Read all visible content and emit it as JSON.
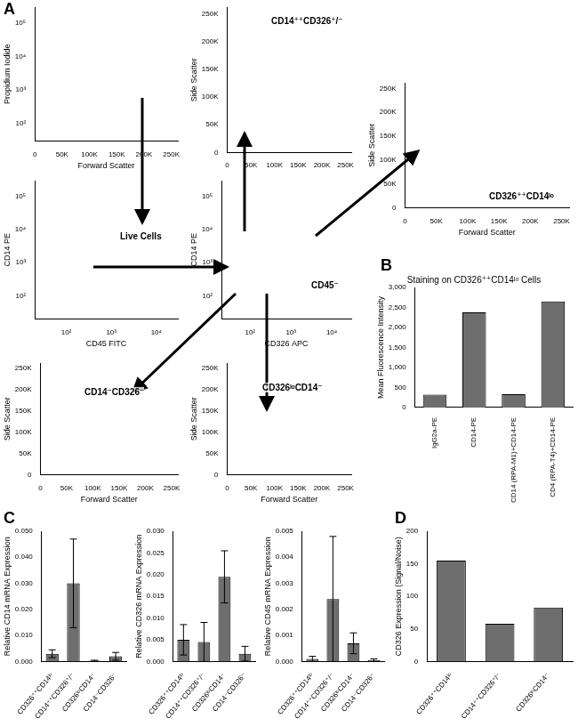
{
  "panel_labels": [
    "A",
    "B",
    "C",
    "D"
  ],
  "chart_data": [
    {
      "type": "scatter",
      "x_label": "Forward Scatter",
      "y_label": "Propidium Iodide",
      "log": "y",
      "xlim": [
        0,
        262000
      ],
      "xticks": [
        0,
        {
          "value": 50000,
          "label": "50K"
        },
        {
          "value": 100000,
          "label": "100K"
        },
        {
          "value": 150000,
          "label": "150K"
        },
        {
          "value": 200000,
          "label": "200K"
        },
        {
          "value": 250000,
          "label": "250K"
        }
      ],
      "ylim": [
        30,
        300000
      ],
      "yticks": [
        {
          "value": 100,
          "label": "10²"
        },
        {
          "value": 1000,
          "label": "10³"
        },
        {
          "value": 10000,
          "label": "10⁴"
        },
        {
          "value": 100000,
          "label": "10⁵"
        }
      ],
      "grid": false
    },
    {
      "type": "scatter",
      "y_label": "Side Scatter",
      "annotations": [
        "CD14⁺⁺CD326⁺/⁻"
      ],
      "xlim": [
        0,
        262000
      ],
      "xticks": [
        0,
        {
          "value": 50000,
          "label": "50K"
        },
        {
          "value": 100000,
          "label": "100K"
        },
        {
          "value": 150000,
          "label": "150K"
        },
        {
          "value": 200000,
          "label": "200K"
        },
        {
          "value": 250000,
          "label": "250K"
        }
      ],
      "ylim": [
        0,
        262000
      ],
      "yticks": [
        0,
        {
          "value": 50000,
          "label": "50K"
        },
        {
          "value": 100000,
          "label": "100K"
        },
        {
          "value": 150000,
          "label": "150K"
        },
        {
          "value": 200000,
          "label": "200K"
        },
        {
          "value": 250000,
          "label": "250K"
        }
      ],
      "grid": false
    },
    {
      "type": "scatter",
      "x_label": "Forward Scatter",
      "y_label": "Side Scatter",
      "annotations": [
        "CD326⁺⁺CD14ˡᵒ"
      ],
      "xlim": [
        0,
        262000
      ],
      "xticks": [
        0,
        {
          "value": 50000,
          "label": "50K"
        },
        {
          "value": 100000,
          "label": "100K"
        },
        {
          "value": 150000,
          "label": "150K"
        },
        {
          "value": 200000,
          "label": "200K"
        },
        {
          "value": 250000,
          "label": "250K"
        }
      ],
      "ylim": [
        0,
        262000
      ],
      "yticks": [
        0,
        {
          "value": 50000,
          "label": "50K"
        },
        {
          "value": 100000,
          "label": "100K"
        },
        {
          "value": 150000,
          "label": "150K"
        },
        {
          "value": 200000,
          "label": "200K"
        },
        {
          "value": 250000,
          "label": "250K"
        }
      ],
      "grid": false
    },
    {
      "type": "scatter",
      "x_label": "CD45 FITC",
      "y_label": "CD14 PE",
      "log": true,
      "annotations": [
        "Live Cells"
      ],
      "xlim": [
        20,
        30000
      ],
      "xticks": [
        {
          "value": 100,
          "label": "10²"
        },
        {
          "value": 1000,
          "label": "10³"
        },
        {
          "value": 10000,
          "label": "10⁴"
        }
      ],
      "ylim": [
        20,
        300000
      ],
      "yticks": [
        {
          "value": 100,
          "label": "10²"
        },
        {
          "value": 1000,
          "label": "10³"
        },
        {
          "value": 10000,
          "label": "10⁴"
        },
        {
          "value": 100000,
          "label": "10⁵"
        }
      ],
      "grid": false
    },
    {
      "type": "scatter",
      "x_label": "CD326 APC",
      "y_label": "CD14 PE",
      "log": true,
      "annotations": [
        "CD45⁻"
      ],
      "xlim": [
        20,
        30000
      ],
      "xticks": [
        {
          "value": 100,
          "label": "10²"
        },
        {
          "value": 1000,
          "label": "10³"
        },
        {
          "value": 10000,
          "label": "10⁴"
        }
      ],
      "ylim": [
        20,
        300000
      ],
      "yticks": [
        {
          "value": 100,
          "label": "10²"
        },
        {
          "value": 1000,
          "label": "10³"
        },
        {
          "value": 10000,
          "label": "10⁴"
        },
        {
          "value": 100000,
          "label": "10⁵"
        }
      ],
      "grid": false
    },
    {
      "type": "scatter",
      "x_label": "Forward Scatter",
      "y_label": "Side Scatter",
      "annotations": [
        "CD14⁻CD326⁻"
      ],
      "xlim": [
        0,
        262000
      ],
      "xticks": [
        0,
        {
          "value": 50000,
          "label": "50K"
        },
        {
          "value": 100000,
          "label": "100K"
        },
        {
          "value": 150000,
          "label": "150K"
        },
        {
          "value": 200000,
          "label": "200K"
        },
        {
          "value": 250000,
          "label": "250K"
        }
      ],
      "ylim": [
        0,
        262000
      ],
      "yticks": [
        0,
        {
          "value": 50000,
          "label": "50K"
        },
        {
          "value": 100000,
          "label": "100K"
        },
        {
          "value": 150000,
          "label": "150K"
        },
        {
          "value": 200000,
          "label": "200K"
        },
        {
          "value": 250000,
          "label": "250K"
        }
      ],
      "grid": false
    },
    {
      "type": "scatter",
      "x_label": "Forward Scatter",
      "y_label": "Side Scatter",
      "annotations": [
        "CD326ˡᵒCD14⁻"
      ],
      "xlim": [
        0,
        262000
      ],
      "xticks": [
        0,
        {
          "value": 50000,
          "label": "50K"
        },
        {
          "value": 100000,
          "label": "100K"
        },
        {
          "value": 150000,
          "label": "150K"
        },
        {
          "value": 200000,
          "label": "200K"
        },
        {
          "value": 250000,
          "label": "250K"
        }
      ],
      "ylim": [
        0,
        262000
      ],
      "yticks": [
        0,
        {
          "value": 50000,
          "label": "50K"
        },
        {
          "value": 100000,
          "label": "100K"
        },
        {
          "value": 150000,
          "label": "150K"
        },
        {
          "value": 200000,
          "label": "200K"
        },
        {
          "value": 250000,
          "label": "250K"
        }
      ],
      "grid": false
    },
    {
      "type": "bar",
      "title": "Staining on CD326⁺⁺CD14ˡᵒ Cells",
      "y_label": "Mean Fluorescence Intensity",
      "categories": [
        "IgG2a-PE",
        "CD14-PE",
        "CD14 (RPA-M1)+CD14-PE",
        "CD4 (RPA-T4)+CD14-PE"
      ],
      "values": [
        320,
        2380,
        330,
        2650
      ],
      "color": "#6e6e6e",
      "ylim": [
        0,
        3000
      ],
      "yticks": [
        0,
        500,
        {
          "value": 1000,
          "label": "1,000"
        },
        {
          "value": 1500,
          "label": "1,500"
        },
        {
          "value": 2000,
          "label": "2,000"
        },
        {
          "value": 2500,
          "label": "2,500"
        },
        {
          "value": 3000,
          "label": "3,000"
        }
      ],
      "grid": false
    },
    {
      "type": "bar",
      "y_label": "Relative CD14 mRNA Expression",
      "categories": [
        "CD326⁺⁺CD14ˡᵒ",
        "CD14⁺⁺CD326⁺/⁻",
        "CD326ˡᵒCD14⁻",
        "CD14⁻CD326⁻"
      ],
      "values": [
        0.003,
        0.03,
        0.0003,
        0.002
      ],
      "errors": [
        0.0015,
        0.017,
        0.0002,
        0.0015
      ],
      "color": "#6e6e6e",
      "ylim": [
        0,
        0.05
      ],
      "yticks": [
        {
          "value": 0,
          "label": "0.000"
        },
        {
          "value": 0.01,
          "label": "0.010"
        },
        {
          "value": 0.02,
          "label": "0.020"
        },
        {
          "value": 0.03,
          "label": "0.030"
        },
        {
          "value": 0.04,
          "label": "0.040"
        },
        {
          "value": 0.05,
          "label": "0.050"
        }
      ],
      "grid": false
    },
    {
      "type": "bar",
      "y_label": "Relative CD326 mRNA Expression",
      "categories": [
        "CD326⁺⁺CD14ˡᵒ",
        "CD14⁺⁺CD326⁺/⁻",
        "CD326ˡᵒCD14⁻",
        "CD14⁻CD326⁻"
      ],
      "values": [
        0.005,
        0.0045,
        0.0195,
        0.0018
      ],
      "errors": [
        0.0035,
        0.0045,
        0.006,
        0.0017
      ],
      "color": "#6e6e6e",
      "ylim": [
        0,
        0.03
      ],
      "yticks": [
        {
          "value": 0,
          "label": "0.000"
        },
        {
          "value": 0.005,
          "label": "0.005"
        },
        {
          "value": 0.01,
          "label": "0.010"
        },
        {
          "value": 0.015,
          "label": "0.015"
        },
        {
          "value": 0.02,
          "label": "0.020"
        },
        {
          "value": 0.025,
          "label": "0.025"
        },
        {
          "value": 0.03,
          "label": "0.030"
        }
      ],
      "grid": false
    },
    {
      "type": "bar",
      "y_label": "Relative CD45 mRNA Expression",
      "categories": [
        "CD326⁺⁺CD14ˡᵒ",
        "CD14⁺⁺CD326⁺/⁻",
        "CD326ˡᵒCD14⁻",
        "CD14⁻CD326⁻"
      ],
      "values": [
        0.0001,
        0.0024,
        0.0007,
        5e-05
      ],
      "errors": [
        0.0001,
        0.0024,
        0.0004,
        5e-05
      ],
      "color": "#6e6e6e",
      "ylim": [
        0,
        0.005
      ],
      "yticks": [
        {
          "value": 0,
          "label": "0.000"
        },
        {
          "value": 0.001,
          "label": "0.001"
        },
        {
          "value": 0.002,
          "label": "0.002"
        },
        {
          "value": 0.003,
          "label": "0.003"
        },
        {
          "value": 0.004,
          "label": "0.004"
        },
        {
          "value": 0.005,
          "label": "0.005"
        }
      ],
      "grid": false
    },
    {
      "type": "bar",
      "y_label": "CD326 Expression (Signal/Noise)",
      "categories": [
        "CD326⁺⁺CD14ˡᵒ",
        "CD14⁺⁺CD326⁺/⁻",
        "CD326ˡᵒCD14⁻"
      ],
      "values": [
        155,
        58,
        83
      ],
      "color": "#6e6e6e",
      "ylim": [
        0,
        200
      ],
      "yticks": [
        0,
        50,
        100,
        150,
        200
      ],
      "grid": false
    }
  ]
}
